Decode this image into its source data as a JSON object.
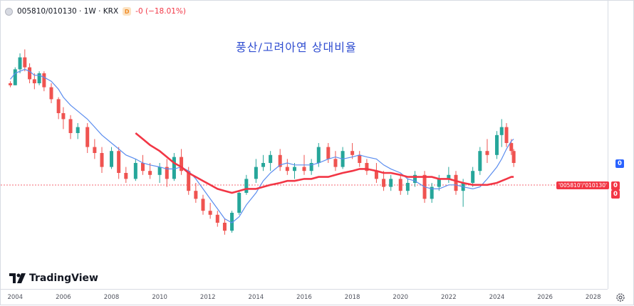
{
  "header": {
    "symbol_text": "005810/010130 · 1W · KRX",
    "change_text": "-0 (−18.01%)",
    "badge_letter": "D"
  },
  "overlay_text": "풍산/고려아연 상대비율",
  "price_badges": {
    "upper": "0",
    "lower_a": "0",
    "lower_b": "0"
  },
  "series_tag": "'005810'/'010130'",
  "branding": "TradingView",
  "colors": {
    "up": "#26a69a",
    "down": "#ef5350",
    "ma_fast": "#5b8def",
    "ma_slow": "#f23645",
    "title": "#2f4dd0"
  },
  "chart_data": {
    "type": "line",
    "title": "풍산/고려아연 상대비율",
    "xlabel": "",
    "ylabel": "",
    "x_ticks": [
      "2004",
      "2006",
      "2008",
      "2010",
      "2012",
      "2014",
      "2016",
      "2018",
      "2020",
      "2022",
      "2024",
      "2026",
      "2028"
    ],
    "xlim": [
      2003.4,
      2028.6
    ],
    "ylim": [
      0,
      100
    ],
    "grid": false,
    "series": [
      {
        "x": [
          2003.8,
          2004.0,
          2004.2,
          2004.4,
          2004.6,
          2004.8,
          2005.0,
          2005.2,
          2005.5,
          2005.8,
          2006.0,
          2006.3,
          2006.6,
          2007.0,
          2007.3,
          2007.6,
          2008.0,
          2008.3,
          2008.6,
          2009.0,
          2009.3,
          2009.6,
          2010.0,
          2010.3,
          2010.6,
          2010.9,
          2011.2,
          2011.5,
          2011.8,
          2012.1,
          2012.4,
          2012.7,
          2013.0,
          2013.3,
          2013.6,
          2014.0,
          2014.3,
          2014.6,
          2015.0,
          2015.3,
          2015.6,
          2016.0,
          2016.3,
          2016.6,
          2017.0,
          2017.3,
          2017.6,
          2018.0,
          2018.3,
          2018.6,
          2019.0,
          2019.3,
          2019.6,
          2020.0,
          2020.3,
          2020.6,
          2021.0,
          2021.3,
          2021.6,
          2022.0,
          2022.3,
          2022.6,
          2023.0,
          2023.3,
          2023.6,
          2024.0,
          2024.2,
          2024.4,
          2024.6,
          2024.7
        ],
        "values": [
          80,
          85,
          90,
          95,
          88,
          82,
          85,
          80,
          78,
          70,
          65,
          60,
          58,
          52,
          48,
          40,
          42,
          38,
          35,
          40,
          38,
          36,
          33,
          30,
          35,
          45,
          30,
          22,
          18,
          15,
          10,
          5,
          10,
          20,
          30,
          35,
          40,
          42,
          45,
          38,
          36,
          40,
          36,
          42,
          48,
          44,
          38,
          45,
          47,
          42,
          40,
          35,
          38,
          30,
          28,
          30,
          22,
          26,
          30,
          32,
          28,
          30,
          24,
          30,
          42,
          44,
          52,
          60,
          52,
          48
        ],
        "ohlc": [
          [
            80,
            81,
            78,
            79
          ],
          [
            79,
            88,
            79,
            87
          ],
          [
            87,
            95,
            85,
            93
          ],
          [
            93,
            97,
            86,
            88
          ],
          [
            88,
            90,
            80,
            82
          ],
          [
            82,
            85,
            77,
            80
          ],
          [
            80,
            86,
            79,
            85
          ],
          [
            85,
            86,
            76,
            78
          ],
          [
            78,
            80,
            70,
            72
          ],
          [
            72,
            73,
            62,
            65
          ],
          [
            65,
            68,
            57,
            62
          ],
          [
            62,
            64,
            52,
            55
          ],
          [
            55,
            60,
            52,
            58
          ],
          [
            58,
            60,
            45,
            48
          ],
          [
            48,
            52,
            42,
            45
          ],
          [
            45,
            48,
            35,
            38
          ],
          [
            38,
            48,
            37,
            46
          ],
          [
            46,
            48,
            32,
            35
          ],
          [
            35,
            38,
            30,
            32
          ],
          [
            32,
            42,
            31,
            40
          ],
          [
            40,
            44,
            34,
            36
          ],
          [
            36,
            40,
            32,
            34
          ],
          [
            34,
            40,
            30,
            38
          ],
          [
            38,
            42,
            28,
            32
          ],
          [
            32,
            45,
            31,
            43
          ],
          [
            43,
            47,
            34,
            36
          ],
          [
            36,
            38,
            24,
            26
          ],
          [
            26,
            30,
            20,
            22
          ],
          [
            22,
            24,
            14,
            16
          ],
          [
            16,
            20,
            12,
            14
          ],
          [
            14,
            16,
            8,
            10
          ],
          [
            10,
            12,
            4,
            6
          ],
          [
            6,
            16,
            5,
            15
          ],
          [
            15,
            26,
            14,
            25
          ],
          [
            25,
            34,
            24,
            32
          ],
          [
            32,
            42,
            30,
            38
          ],
          [
            38,
            44,
            36,
            40
          ],
          [
            40,
            46,
            36,
            44
          ],
          [
            44,
            47,
            36,
            38
          ],
          [
            38,
            42,
            34,
            36
          ],
          [
            36,
            40,
            32,
            38
          ],
          [
            38,
            44,
            34,
            36
          ],
          [
            36,
            42,
            34,
            40
          ],
          [
            40,
            50,
            38,
            48
          ],
          [
            48,
            50,
            40,
            42
          ],
          [
            42,
            46,
            36,
            38
          ],
          [
            38,
            48,
            37,
            46
          ],
          [
            46,
            50,
            42,
            44
          ],
          [
            44,
            46,
            38,
            40
          ],
          [
            40,
            42,
            34,
            36
          ],
          [
            36,
            40,
            30,
            32
          ],
          [
            32,
            36,
            26,
            28
          ],
          [
            28,
            34,
            26,
            32
          ],
          [
            32,
            34,
            24,
            26
          ],
          [
            26,
            32,
            24,
            30
          ],
          [
            30,
            36,
            28,
            34
          ],
          [
            34,
            36,
            20,
            22
          ],
          [
            22,
            30,
            20,
            28
          ],
          [
            28,
            34,
            26,
            32
          ],
          [
            32,
            38,
            30,
            34
          ],
          [
            34,
            36,
            24,
            26
          ],
          [
            26,
            32,
            18,
            30
          ],
          [
            30,
            38,
            28,
            36
          ],
          [
            36,
            48,
            34,
            46
          ],
          [
            46,
            52,
            40,
            44
          ],
          [
            44,
            56,
            42,
            54
          ],
          [
            54,
            62,
            48,
            58
          ],
          [
            58,
            60,
            48,
            50
          ],
          [
            50,
            52,
            44,
            46
          ],
          [
            46,
            47,
            38,
            40
          ]
        ],
        "fast_ma": [
          82,
          85,
          86,
          87,
          86,
          84,
          84,
          83,
          81,
          77,
          73,
          69,
          66,
          62,
          58,
          54,
          50,
          47,
          44,
          42,
          40,
          39,
          38,
          37,
          37,
          38,
          36,
          32,
          27,
          22,
          17,
          12,
          10,
          13,
          19,
          25,
          31,
          35,
          39,
          40,
          39,
          39,
          39,
          40,
          42,
          43,
          42,
          43,
          44,
          43,
          42,
          39,
          37,
          35,
          32,
          31,
          28,
          27,
          27,
          29,
          29,
          28,
          27,
          28,
          32,
          38,
          42,
          47,
          51,
          52
        ],
        "slow_ma": [
          null,
          null,
          null,
          null,
          null,
          null,
          null,
          null,
          null,
          null,
          null,
          null,
          null,
          null,
          null,
          null,
          null,
          null,
          null,
          55,
          52,
          49,
          46,
          43,
          40,
          38,
          35,
          33,
          31,
          29,
          27,
          26,
          25,
          26,
          27,
          27,
          28,
          29,
          30,
          31,
          31,
          32,
          32,
          33,
          33,
          34,
          35,
          36,
          37,
          37,
          36,
          35,
          35,
          34,
          33,
          33,
          33,
          33,
          32,
          32,
          31,
          30,
          29,
          29,
          29,
          30,
          31,
          32,
          33,
          33
        ]
      }
    ]
  }
}
